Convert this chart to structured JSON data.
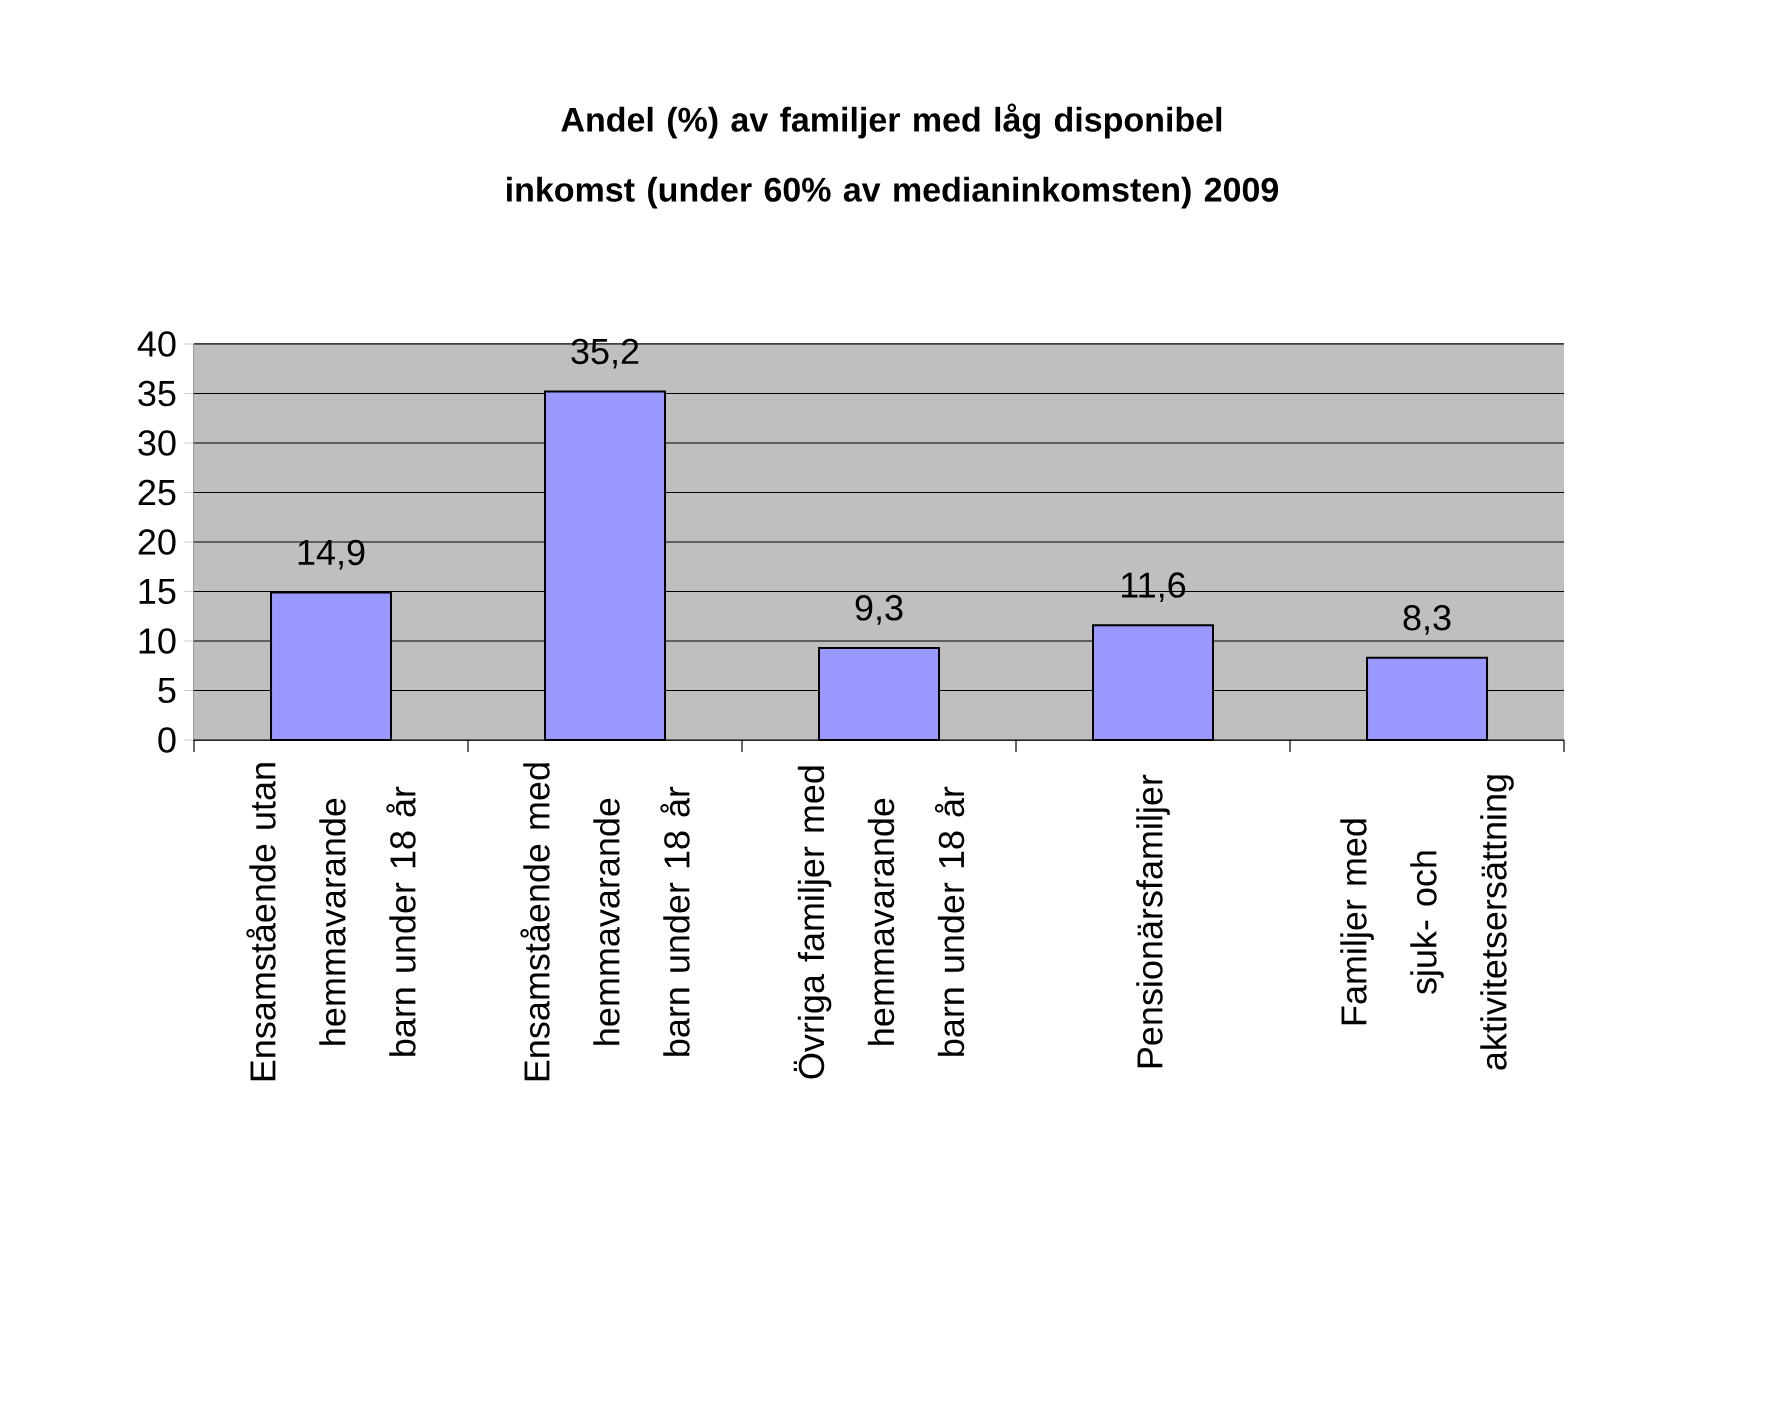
{
  "chart_data": {
    "type": "bar",
    "title": "Andel (%) av familjer med låg disponibel inkomst (under 60% av medianinkomsten) 2009",
    "categories": [
      "Ensamstående utan hemmavarande barn under 18 år",
      "Ensamstående med hemmavarande barn under 18 år",
      "Övriga familjer med hemmavarande barn under 18 år",
      "Pensionärsfamiljer",
      "Familjer med sjuk- och aktivitetsersättning"
    ],
    "values": [
      14.9,
      35.2,
      9.3,
      11.6,
      8.3
    ],
    "value_labels": [
      "14,9",
      "35,2",
      "9,3",
      "11,6",
      "8,3"
    ],
    "color": "#9999ff",
    "ylim": [
      0,
      40
    ],
    "yticks": [
      0,
      5,
      10,
      15,
      20,
      25,
      30,
      35,
      40
    ],
    "grid": "y"
  }
}
